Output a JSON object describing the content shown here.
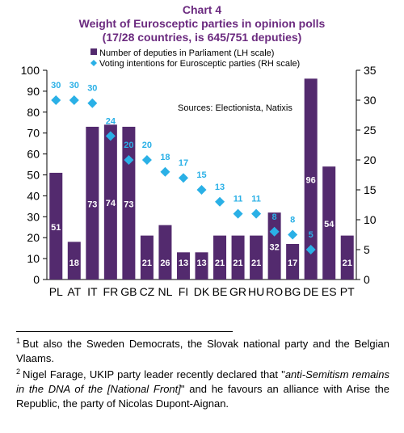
{
  "title": "Chart 4",
  "subtitle1": "Weight of Eurosceptic parties in opinion polls",
  "subtitle2": "(17/28 countries, is 645/751 deputies)",
  "chart_data": {
    "type": "bar",
    "categories": [
      "PL",
      "AT",
      "IT",
      "FR",
      "GB",
      "CZ",
      "NL",
      "FI",
      "DK",
      "BE",
      "GR",
      "HU",
      "RO",
      "BG",
      "DE",
      "ES",
      "PT"
    ],
    "series": [
      {
        "name": "Number of deputies in Parliament (LH scale)",
        "kind": "bar",
        "axis": "left",
        "values": [
          51,
          18,
          73,
          74,
          73,
          21,
          26,
          13,
          13,
          21,
          21,
          21,
          32,
          17,
          96,
          54,
          21
        ],
        "labels": [
          "51",
          "18",
          "73",
          "74",
          "73",
          "21",
          "26",
          "13",
          "13",
          "21",
          "21",
          "21",
          "32",
          "17",
          "96",
          "54",
          "21"
        ]
      },
      {
        "name": "Voting intentions for Eurosceptic parties (RH scale)",
        "kind": "scatter",
        "axis": "right",
        "values": [
          30,
          30,
          29.5,
          24,
          20,
          20,
          18,
          17,
          15,
          13,
          11,
          11,
          8,
          7.5,
          5,
          null,
          null
        ],
        "labels": [
          "30",
          "30",
          "30",
          "24",
          "20",
          "20",
          "18",
          "17",
          "15",
          "13",
          "11",
          "11",
          "8",
          "8",
          "5",
          "",
          ""
        ]
      }
    ],
    "ylim_left": [
      0,
      100
    ],
    "ylim_right": [
      0,
      35
    ],
    "yticks_left": [
      "0",
      "10",
      "20",
      "30",
      "40",
      "50",
      "60",
      "70",
      "80",
      "90",
      "100"
    ],
    "yticks_right": [
      "0",
      "5",
      "10",
      "15",
      "20",
      "25",
      "30",
      "35"
    ],
    "colors": {
      "bar": "#532a6e",
      "marker": "#2ab0e6",
      "title": "#6b2a7f"
    },
    "source_note": "Sources:  Electionista,   Natixis",
    "legend_position": "top-left"
  },
  "footnotes": {
    "n1": "1",
    "t1": "But also the Sweden Democrats, the Slovak national party and the Belgian Vlaams.",
    "n2": "2",
    "t2a": "Nigel Farage, UKIP party leader recently declared that \"",
    "t2b": "anti-Semitism remains in the DNA of the [National Front]",
    "t2c": "\" and he favours an alliance with Arise the Republic, the party of Nicolas Dupont-Aignan."
  }
}
